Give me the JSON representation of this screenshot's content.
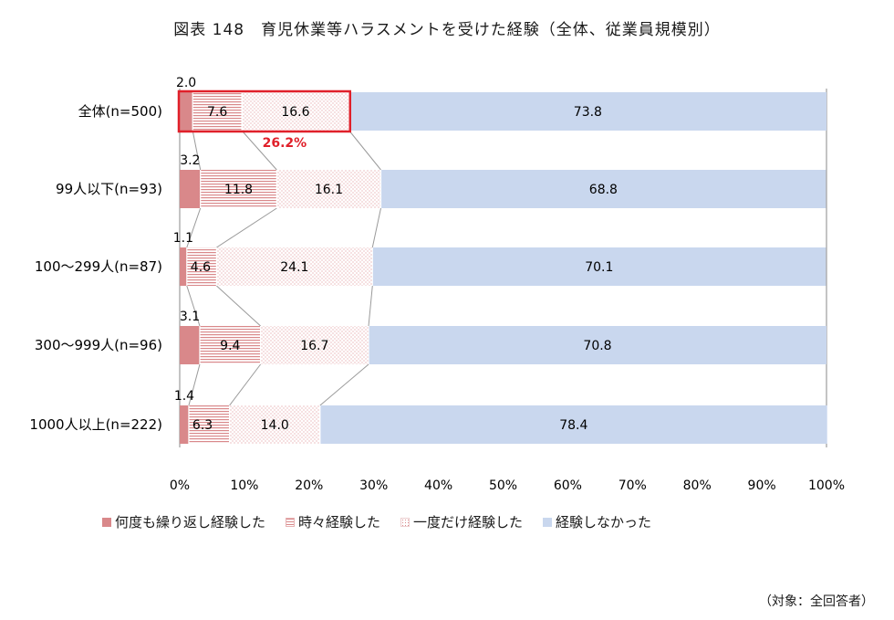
{
  "chart_data": {
    "type": "stacked-bar-horizontal",
    "title": "図表 148　育児休業等ハラスメントを受けた経験（全体、従業員規模別）",
    "categories": [
      "全体(n=500)",
      "99人以下(n=93)",
      "100～299人(n=87)",
      "300～999人(n=96)",
      "1000人以上(n=222)"
    ],
    "series": [
      {
        "name": "何度も繰り返し経験した",
        "values": [
          2.0,
          3.2,
          1.1,
          3.1,
          1.4
        ],
        "color": "#d9888a"
      },
      {
        "name": "時々経験した",
        "values": [
          7.6,
          11.8,
          4.6,
          9.4,
          6.3
        ],
        "color": "#d9888a"
      },
      {
        "name": "一度だけ経験した",
        "values": [
          16.6,
          16.1,
          24.1,
          16.7,
          14.0
        ],
        "color": "#d9888a"
      },
      {
        "name": "経験しなかった",
        "values": [
          73.8,
          68.8,
          70.1,
          70.8,
          78.4
        ],
        "color": "#c9d7ee"
      }
    ],
    "xlim": [
      0,
      100
    ],
    "xticks": [
      "0%",
      "10%",
      "20%",
      "30%",
      "40%",
      "50%",
      "60%",
      "70%",
      "80%",
      "90%",
      "100%"
    ],
    "annotation": {
      "text": "26.2%",
      "color": "#e0202a"
    },
    "legend_position": "bottom"
  },
  "source_note": "（対象：全回答者）"
}
